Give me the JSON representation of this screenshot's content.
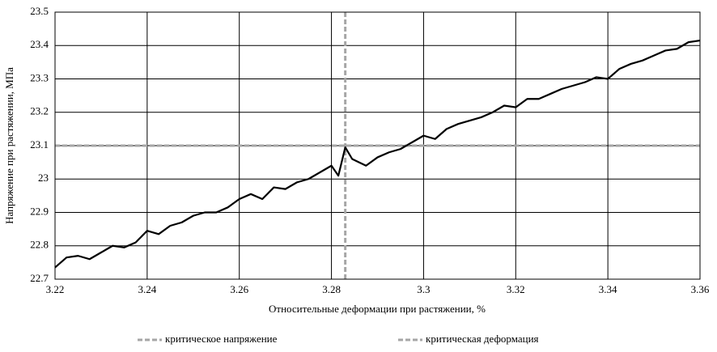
{
  "chart_data": {
    "type": "line",
    "x_label": "Относительные деформации при растяжении, %",
    "y_label": "Напряжение при растяжении, МПа",
    "x": [
      3.22,
      3.2225,
      3.225,
      3.2275,
      3.23,
      3.2325,
      3.235,
      3.2375,
      3.24,
      3.2425,
      3.245,
      3.2475,
      3.25,
      3.2525,
      3.255,
      3.2575,
      3.26,
      3.2625,
      3.265,
      3.2675,
      3.27,
      3.2725,
      3.275,
      3.2775,
      3.28,
      3.2815,
      3.283,
      3.2845,
      3.2875,
      3.29,
      3.2925,
      3.295,
      3.2975,
      3.3,
      3.3025,
      3.305,
      3.3075,
      3.31,
      3.3125,
      3.315,
      3.3175,
      3.32,
      3.3225,
      3.325,
      3.3275,
      3.33,
      3.3325,
      3.335,
      3.3375,
      3.34,
      3.3425,
      3.345,
      3.3475,
      3.35,
      3.3525,
      3.355,
      3.3575,
      3.36
    ],
    "series": [
      {
        "color": "#000000",
        "values": [
          22.735,
          22.765,
          22.77,
          22.76,
          22.78,
          22.8,
          22.795,
          22.81,
          22.845,
          22.835,
          22.86,
          22.87,
          22.89,
          22.9,
          22.9,
          22.915,
          22.94,
          22.955,
          22.94,
          22.975,
          22.97,
          22.99,
          23,
          23.02,
          23.04,
          23.01,
          23.095,
          23.06,
          23.04,
          23.065,
          23.08,
          23.09,
          23.11,
          23.13,
          23.12,
          23.15,
          23.165,
          23.175,
          23.185,
          23.2,
          23.22,
          23.215,
          23.24,
          23.24,
          23.255,
          23.27,
          23.28,
          23.29,
          23.305,
          23.3,
          23.33,
          23.345,
          23.355,
          23.37,
          23.385,
          23.39,
          23.41,
          23.415
        ]
      }
    ],
    "reference_lines": [
      {
        "name": "критическое напряжение",
        "axis": "y",
        "value": 23.1,
        "color": "#a6a6a6"
      },
      {
        "name": "критическая деформация",
        "axis": "x",
        "value": 3.283,
        "color": "#a6a6a6"
      }
    ],
    "xlim": [
      3.22,
      3.36
    ],
    "xticks": [
      3.22,
      3.24,
      3.26,
      3.28,
      3.3,
      3.32,
      3.34,
      3.36
    ],
    "ylim": [
      22.7,
      23.5
    ],
    "yticks": [
      22.7,
      22.8,
      22.9,
      23,
      23.1,
      23.2,
      23.3,
      23.4,
      23.5
    ],
    "grid": true,
    "legend": "bottom"
  }
}
